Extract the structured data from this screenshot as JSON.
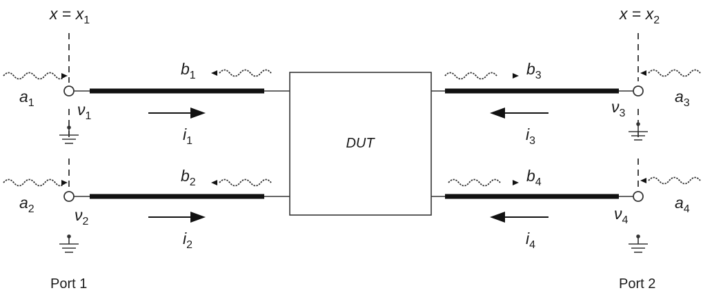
{
  "planes": {
    "left": {
      "x": "x",
      "eq": " = ",
      "var": "x",
      "sub": "1"
    },
    "right": {
      "x": "x",
      "eq": " = ",
      "var": "x",
      "sub": "2"
    }
  },
  "dut": "DUT",
  "ports": {
    "p1": "Port 1",
    "p2": "Port 2"
  },
  "labels": {
    "a1": {
      "base": "a",
      "sub": "1"
    },
    "a2": {
      "base": "a",
      "sub": "2"
    },
    "a3": {
      "base": "a",
      "sub": "3"
    },
    "a4": {
      "base": "a",
      "sub": "4"
    },
    "b1": {
      "base": "b",
      "sub": "1"
    },
    "b2": {
      "base": "b",
      "sub": "2"
    },
    "b3": {
      "base": "b",
      "sub": "3"
    },
    "b4": {
      "base": "b",
      "sub": "4"
    },
    "v1": {
      "base": "ν",
      "sub": "1"
    },
    "v2": {
      "base": "ν",
      "sub": "2"
    },
    "v3": {
      "base": "ν",
      "sub": "3"
    },
    "v4": {
      "base": "ν",
      "sub": "4"
    },
    "i1": {
      "base": "i",
      "sub": "1"
    },
    "i2": {
      "base": "i",
      "sub": "2"
    },
    "i3": {
      "base": "i",
      "sub": "3"
    },
    "i4": {
      "base": "i",
      "sub": "4"
    }
  }
}
